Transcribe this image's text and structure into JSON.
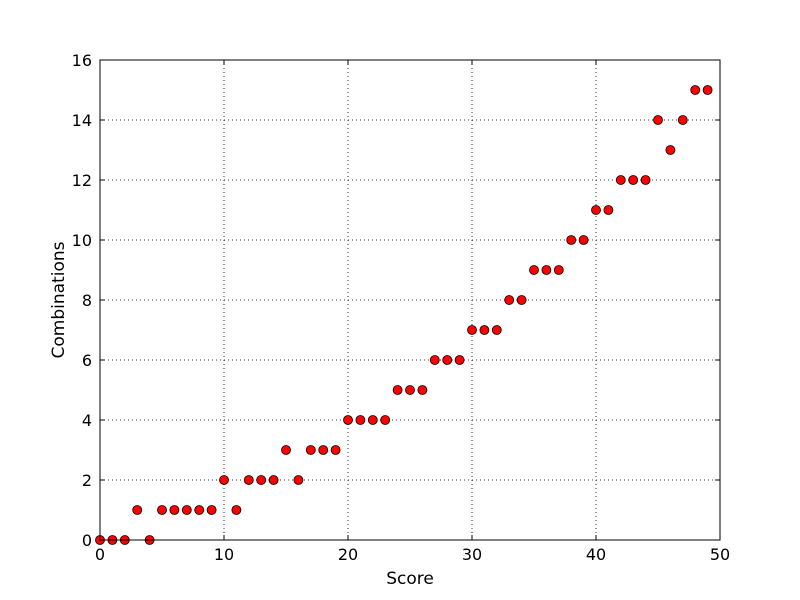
{
  "chart_data": {
    "type": "scatter",
    "title": "",
    "xlabel": "Score",
    "ylabel": "Combinations",
    "xlim": [
      0,
      50
    ],
    "ylim": [
      0,
      16
    ],
    "x_ticks": [
      0,
      10,
      20,
      30,
      40,
      50
    ],
    "y_ticks": [
      0,
      2,
      4,
      6,
      8,
      10,
      12,
      14,
      16
    ],
    "grid": true,
    "legend": "none",
    "marker_color": "#ff0000",
    "marker_edge_color": "#000000",
    "series": [
      {
        "x": [
          0,
          1,
          2,
          3,
          4,
          5,
          6,
          7,
          8,
          9,
          10,
          11,
          12,
          13,
          14,
          15,
          16,
          17,
          18,
          19,
          20,
          21,
          22,
          23,
          24,
          25,
          26,
          27,
          28,
          29,
          30,
          31,
          32,
          33,
          34,
          35,
          36,
          37,
          38,
          39,
          40,
          41,
          42,
          43,
          44,
          45,
          46,
          47,
          48,
          49
        ],
        "y": [
          0,
          0,
          0,
          1,
          0,
          1,
          1,
          1,
          1,
          1,
          2,
          1,
          2,
          2,
          2,
          3,
          2,
          3,
          3,
          3,
          4,
          4,
          4,
          4,
          5,
          5,
          5,
          6,
          6,
          6,
          7,
          7,
          7,
          8,
          8,
          9,
          9,
          9,
          10,
          10,
          11,
          11,
          12,
          12,
          12,
          14,
          13,
          14,
          15,
          15
        ]
      }
    ]
  }
}
